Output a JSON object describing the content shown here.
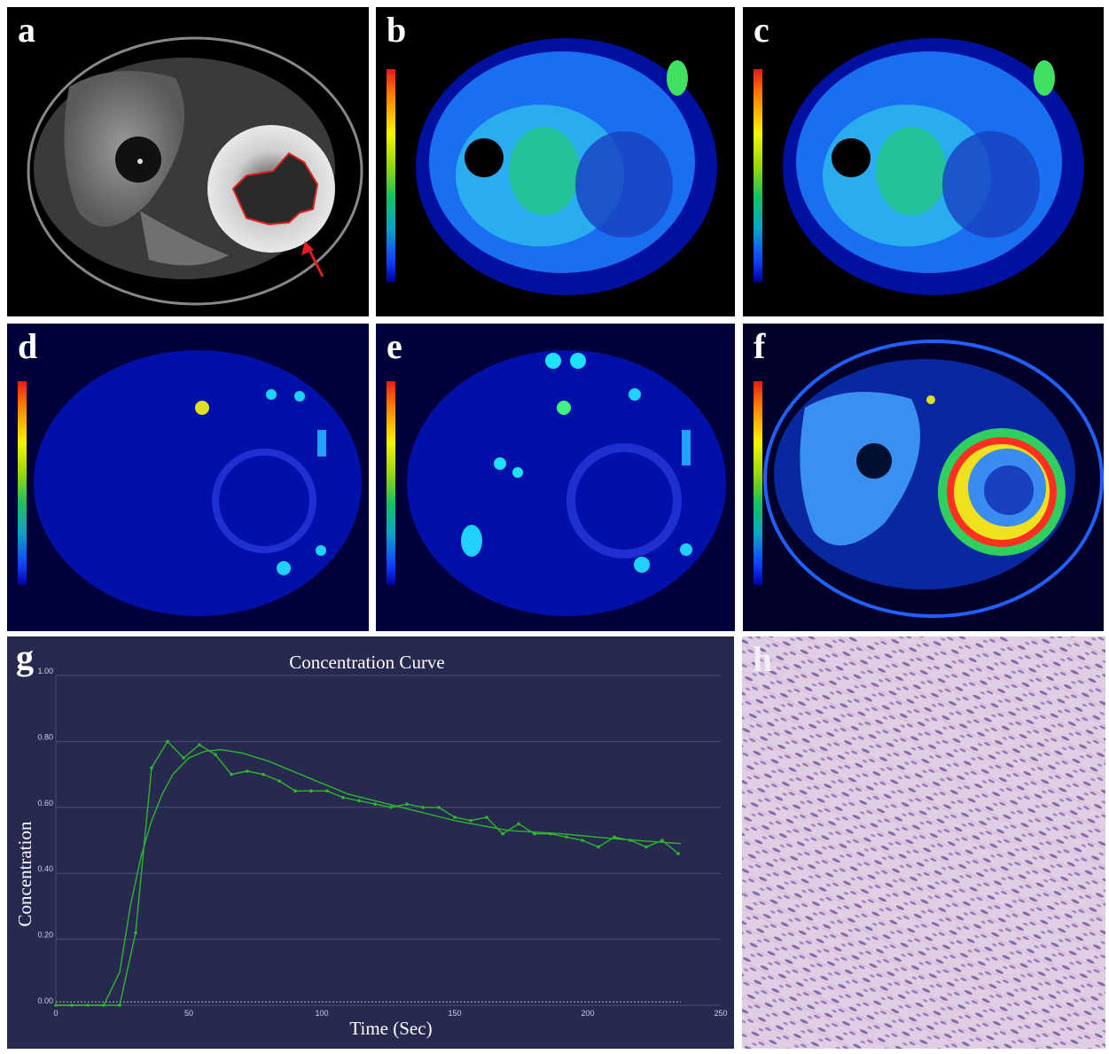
{
  "panels": {
    "a": {
      "label": "a"
    },
    "b": {
      "label": "b"
    },
    "c": {
      "label": "c"
    },
    "d": {
      "label": "d"
    },
    "e": {
      "label": "e"
    },
    "f": {
      "label": "f"
    },
    "g": {
      "label": "g"
    },
    "h": {
      "label": "h"
    }
  },
  "colors": {
    "tumor_outline": "#e0201c",
    "arrow": "#e02020",
    "chart_bg": "#27294f",
    "curve": "#2fb52f"
  },
  "chart_data": {
    "type": "line",
    "title": "Concentration Curve",
    "xlabel": "Time (Sec)",
    "ylabel": "Concentration",
    "xlim": [
      0,
      250
    ],
    "ylim": [
      0,
      1.0
    ],
    "x_ticks": [
      "0",
      "50",
      "100",
      "150",
      "200",
      "250"
    ],
    "y_ticks": [
      "0.00",
      "0.20",
      "0.40",
      "0.60",
      "0.80",
      "1.00"
    ],
    "grid": true,
    "series": [
      {
        "x": [
          0,
          6,
          12,
          18,
          24,
          30,
          36,
          42,
          48,
          54,
          60,
          66,
          72,
          78,
          84,
          90,
          96,
          102,
          108,
          114,
          120,
          126,
          132,
          138,
          144,
          150,
          156,
          162,
          168,
          174,
          180,
          186,
          192,
          198,
          204,
          210,
          216,
          222,
          228,
          234
        ],
        "values": [
          0.0,
          0.0,
          0.0,
          0.0,
          0.0,
          0.22,
          0.72,
          0.8,
          0.75,
          0.79,
          0.76,
          0.7,
          0.71,
          0.7,
          0.68,
          0.65,
          0.65,
          0.65,
          0.63,
          0.62,
          0.61,
          0.6,
          0.61,
          0.6,
          0.6,
          0.57,
          0.56,
          0.57,
          0.52,
          0.55,
          0.52,
          0.52,
          0.51,
          0.5,
          0.48,
          0.51,
          0.5,
          0.48,
          0.5,
          0.46
        ]
      },
      {
        "x": [
          0,
          18,
          24,
          28,
          32,
          36,
          40,
          44,
          50,
          56,
          62,
          70,
          80,
          95,
          110,
          130,
          150,
          170,
          190,
          210,
          235
        ],
        "values": [
          0.0,
          0.0,
          0.1,
          0.3,
          0.45,
          0.56,
          0.64,
          0.7,
          0.75,
          0.77,
          0.775,
          0.765,
          0.74,
          0.69,
          0.64,
          0.6,
          0.56,
          0.53,
          0.52,
          0.505,
          0.49
        ]
      }
    ],
    "baseline": 0.01
  }
}
